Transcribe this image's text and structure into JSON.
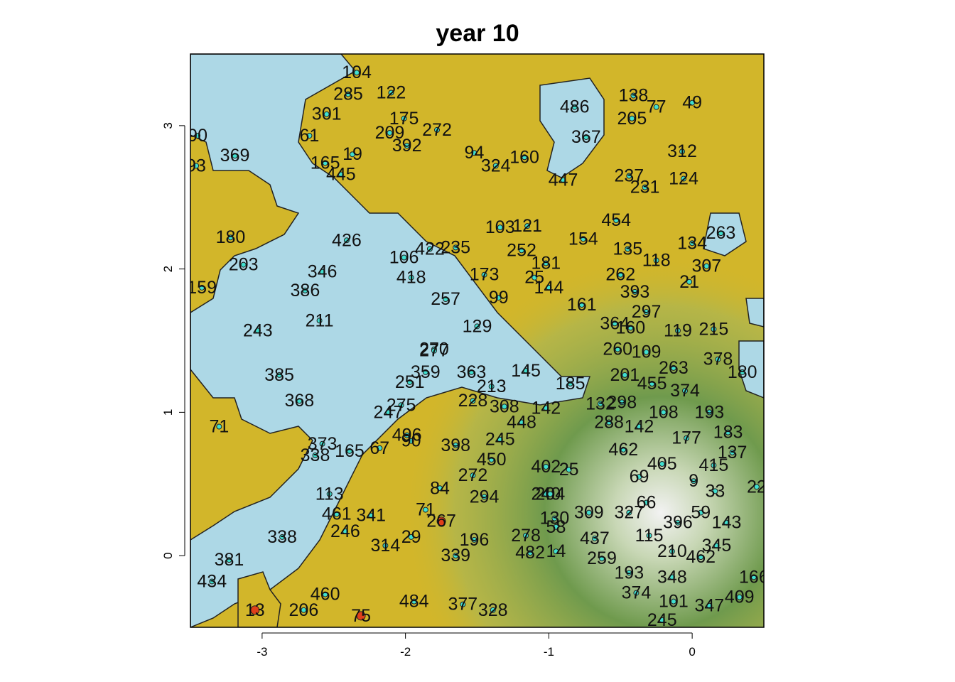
{
  "chart_data": {
    "type": "scatter",
    "title": "year 10",
    "xlabel": "",
    "ylabel": "",
    "xlim": [
      -3.5,
      0.5
    ],
    "ylim": [
      -0.5,
      3.5
    ],
    "x_ticks": [
      -3,
      -2,
      -1,
      0
    ],
    "y_ticks": [
      0,
      1,
      2,
      3
    ],
    "colors": {
      "water": "#add8e6",
      "land": "#d2b62a",
      "terrain_dark": "#6f9a4d",
      "terrain_light": "#c8d7b5",
      "peak": "#f2f2f2",
      "point": "#40e0d0",
      "point_highlight": "#e0401a"
    },
    "points": [
      {
        "id": "369",
        "x": -3.19,
        "y": 2.79
      },
      {
        "id": "93",
        "x": -3.46,
        "y": 2.72
      },
      {
        "id": "90",
        "x": -3.45,
        "y": 2.93
      },
      {
        "id": "61",
        "x": -2.67,
        "y": 2.93
      },
      {
        "id": "165",
        "x": -2.56,
        "y": 2.74
      },
      {
        "id": "445",
        "x": -2.45,
        "y": 2.66
      },
      {
        "id": "19",
        "x": -2.37,
        "y": 2.8
      },
      {
        "id": "301",
        "x": -2.55,
        "y": 3.08
      },
      {
        "id": "285",
        "x": -2.4,
        "y": 3.22
      },
      {
        "id": "104",
        "x": -2.34,
        "y": 3.37
      },
      {
        "id": "122",
        "x": -2.1,
        "y": 3.23
      },
      {
        "id": "175",
        "x": -2.01,
        "y": 3.05
      },
      {
        "id": "209",
        "x": -2.11,
        "y": 2.95
      },
      {
        "id": "272",
        "x": -1.78,
        "y": 2.97
      },
      {
        "id": "392",
        "x": -1.99,
        "y": 2.86
      },
      {
        "id": "94",
        "x": -1.52,
        "y": 2.81
      },
      {
        "id": "324",
        "x": -1.37,
        "y": 2.72
      },
      {
        "id": "160",
        "x": -1.17,
        "y": 2.78
      },
      {
        "id": "486",
        "x": -0.82,
        "y": 3.13
      },
      {
        "id": "367",
        "x": -0.74,
        "y": 2.92
      },
      {
        "id": "138",
        "x": -0.41,
        "y": 3.21
      },
      {
        "id": "205",
        "x": -0.42,
        "y": 3.05
      },
      {
        "id": "77",
        "x": -0.25,
        "y": 3.13
      },
      {
        "id": "49",
        "x": 0.0,
        "y": 3.16
      },
      {
        "id": "312",
        "x": -0.07,
        "y": 2.82
      },
      {
        "id": "124",
        "x": -0.06,
        "y": 2.63
      },
      {
        "id": "237",
        "x": -0.44,
        "y": 2.65
      },
      {
        "id": "231",
        "x": -0.33,
        "y": 2.57
      },
      {
        "id": "447",
        "x": -0.9,
        "y": 2.62
      },
      {
        "id": "154",
        "x": -0.76,
        "y": 2.21
      },
      {
        "id": "454",
        "x": -0.53,
        "y": 2.34
      },
      {
        "id": "135",
        "x": -0.45,
        "y": 2.14
      },
      {
        "id": "118",
        "x": -0.25,
        "y": 2.06
      },
      {
        "id": "307",
        "x": 0.1,
        "y": 2.02
      },
      {
        "id": "134",
        "x": 0.0,
        "y": 2.18
      },
      {
        "id": "263",
        "x": 0.2,
        "y": 2.25
      },
      {
        "id": "21",
        "x": -0.02,
        "y": 1.91
      },
      {
        "id": "393",
        "x": -0.4,
        "y": 1.84
      },
      {
        "id": "262",
        "x": -0.5,
        "y": 1.96
      },
      {
        "id": "144",
        "x": -1.0,
        "y": 1.87
      },
      {
        "id": "161",
        "x": -0.77,
        "y": 1.75
      },
      {
        "id": "364",
        "x": -0.54,
        "y": 1.62
      },
      {
        "id": "160b",
        "label": "160",
        "x": -0.43,
        "y": 1.59
      },
      {
        "id": "119",
        "x": -0.1,
        "y": 1.57
      },
      {
        "id": "215",
        "x": 0.15,
        "y": 1.58
      },
      {
        "id": "297",
        "x": -0.32,
        "y": 1.7
      },
      {
        "id": "260",
        "x": -0.52,
        "y": 1.44
      },
      {
        "id": "109",
        "x": -0.32,
        "y": 1.42
      },
      {
        "id": "263b",
        "label": "263",
        "x": -0.13,
        "y": 1.31
      },
      {
        "id": "378",
        "x": 0.18,
        "y": 1.37
      },
      {
        "id": "180",
        "x": 0.35,
        "y": 1.28
      },
      {
        "id": "201",
        "x": -0.47,
        "y": 1.26
      },
      {
        "id": "455",
        "x": -0.28,
        "y": 1.2
      },
      {
        "id": "374",
        "x": -0.05,
        "y": 1.15
      },
      {
        "id": "298",
        "x": -0.49,
        "y": 1.07
      },
      {
        "id": "185",
        "x": -0.85,
        "y": 1.2
      },
      {
        "id": "132",
        "x": -0.64,
        "y": 1.06
      },
      {
        "id": "108",
        "x": -0.2,
        "y": 1.0
      },
      {
        "id": "193",
        "x": 0.12,
        "y": 1.0
      },
      {
        "id": "183",
        "x": 0.25,
        "y": 0.86
      },
      {
        "id": "177",
        "x": -0.04,
        "y": 0.82
      },
      {
        "id": "142",
        "x": -0.37,
        "y": 0.9
      },
      {
        "id": "288",
        "x": -0.58,
        "y": 0.93
      },
      {
        "id": "462",
        "x": -0.48,
        "y": 0.74
      },
      {
        "id": "405",
        "x": -0.21,
        "y": 0.64
      },
      {
        "id": "415",
        "x": 0.15,
        "y": 0.63
      },
      {
        "id": "137",
        "x": 0.28,
        "y": 0.72
      },
      {
        "id": "69",
        "x": -0.37,
        "y": 0.55
      },
      {
        "id": "9",
        "x": 0.01,
        "y": 0.52
      },
      {
        "id": "33",
        "x": 0.16,
        "y": 0.45
      },
      {
        "id": "22",
        "x": 0.45,
        "y": 0.48
      },
      {
        "id": "66",
        "x": -0.32,
        "y": 0.37
      },
      {
        "id": "59",
        "x": 0.06,
        "y": 0.3
      },
      {
        "id": "396",
        "x": -0.1,
        "y": 0.23
      },
      {
        "id": "143",
        "x": 0.24,
        "y": 0.23
      },
      {
        "id": "327",
        "x": -0.44,
        "y": 0.3
      },
      {
        "id": "115",
        "x": -0.3,
        "y": 0.14
      },
      {
        "id": "345",
        "x": 0.17,
        "y": 0.07
      },
      {
        "id": "210",
        "x": -0.14,
        "y": 0.03
      },
      {
        "id": "462b",
        "label": "462",
        "x": 0.06,
        "y": -0.01
      },
      {
        "id": "348",
        "x": -0.14,
        "y": -0.15
      },
      {
        "id": "166",
        "x": 0.43,
        "y": -0.15
      },
      {
        "id": "409",
        "x": 0.33,
        "y": -0.29
      },
      {
        "id": "101",
        "x": -0.13,
        "y": -0.32
      },
      {
        "id": "347",
        "x": 0.12,
        "y": -0.35
      },
      {
        "id": "245",
        "x": -0.21,
        "y": -0.45
      },
      {
        "id": "374b",
        "label": "374",
        "x": -0.39,
        "y": -0.26
      },
      {
        "id": "193b",
        "label": "193",
        "x": -0.44,
        "y": -0.12
      },
      {
        "id": "259",
        "x": -0.63,
        "y": -0.02
      },
      {
        "id": "437",
        "x": -0.68,
        "y": 0.12
      },
      {
        "id": "240",
        "x": -1.02,
        "y": 0.43
      },
      {
        "id": "204",
        "x": -0.99,
        "y": 0.43
      },
      {
        "id": "402",
        "x": -1.02,
        "y": 0.62
      },
      {
        "id": "25",
        "x": -0.86,
        "y": 0.6
      },
      {
        "id": "309",
        "x": -0.72,
        "y": 0.3
      },
      {
        "id": "130",
        "x": -0.96,
        "y": 0.26
      },
      {
        "id": "58",
        "x": -0.95,
        "y": 0.2
      },
      {
        "id": "211",
        "x": -2.6,
        "y": 1.64
      },
      {
        "id": "368",
        "x": -2.74,
        "y": 1.08
      },
      {
        "id": "338",
        "x": -2.86,
        "y": 0.13
      },
      {
        "id": "381",
        "x": -3.23,
        "y": -0.03
      },
      {
        "id": "434",
        "x": -3.35,
        "y": -0.18
      },
      {
        "id": "206",
        "x": -2.71,
        "y": -0.38
      },
      {
        "id": "460",
        "x": -2.56,
        "y": -0.27
      },
      {
        "id": "246",
        "x": -2.42,
        "y": 0.17
      },
      {
        "id": "461",
        "x": -2.48,
        "y": 0.29
      },
      {
        "id": "341",
        "x": -2.24,
        "y": 0.28
      },
      {
        "id": "113",
        "x": -2.53,
        "y": 0.43
      },
      {
        "id": "338b",
        "label": "338",
        "x": -2.63,
        "y": 0.7
      },
      {
        "id": "373",
        "x": -2.58,
        "y": 0.78
      },
      {
        "id": "165b",
        "label": "165",
        "x": -2.39,
        "y": 0.73
      },
      {
        "id": "67",
        "x": -2.18,
        "y": 0.75
      },
      {
        "id": "496",
        "x": -1.99,
        "y": 0.84
      },
      {
        "id": "90b",
        "label": "90",
        "x": -1.96,
        "y": 0.8
      },
      {
        "id": "398",
        "x": -1.65,
        "y": 0.77
      },
      {
        "id": "450",
        "x": -1.4,
        "y": 0.67
      },
      {
        "id": "272b",
        "label": "272",
        "x": -1.53,
        "y": 0.56
      },
      {
        "id": "84",
        "x": -1.76,
        "y": 0.47
      },
      {
        "id": "294",
        "x": -1.45,
        "y": 0.41
      },
      {
        "id": "71",
        "x": -1.86,
        "y": 0.32
      },
      {
        "id": "267",
        "x": -1.75,
        "y": 0.24
      },
      {
        "id": "29",
        "x": -1.96,
        "y": 0.13
      },
      {
        "id": "314",
        "x": -2.14,
        "y": 0.07
      },
      {
        "id": "196",
        "x": -1.52,
        "y": 0.11
      },
      {
        "id": "278",
        "x": -1.16,
        "y": 0.14
      },
      {
        "id": "482",
        "x": -1.13,
        "y": 0.02
      },
      {
        "id": "14",
        "x": -0.95,
        "y": 0.03
      },
      {
        "id": "339",
        "x": -1.65,
        "y": 0.0
      },
      {
        "id": "377",
        "x": -1.6,
        "y": -0.34
      },
      {
        "id": "328",
        "x": -1.39,
        "y": -0.38
      },
      {
        "id": "484",
        "x": -1.94,
        "y": -0.32
      },
      {
        "id": "75",
        "x": -2.31,
        "y": -0.42
      },
      {
        "id": "13",
        "x": -3.05,
        "y": -0.38
      },
      {
        "id": "245b",
        "label": "245",
        "x": -1.34,
        "y": 0.81
      },
      {
        "id": "448",
        "x": -1.19,
        "y": 0.93
      },
      {
        "id": "308",
        "x": -1.31,
        "y": 1.04
      },
      {
        "id": "142b",
        "label": "142",
        "x": -1.02,
        "y": 1.03
      },
      {
        "id": "228",
        "x": -1.53,
        "y": 1.08
      },
      {
        "id": "275",
        "x": -2.03,
        "y": 1.05
      },
      {
        "id": "247",
        "x": -2.12,
        "y": 1.0
      },
      {
        "id": "213",
        "x": -1.4,
        "y": 1.18
      },
      {
        "id": "251",
        "x": -1.97,
        "y": 1.21
      },
      {
        "id": "359",
        "x": -1.86,
        "y": 1.28
      },
      {
        "id": "363",
        "x": -1.54,
        "y": 1.28
      },
      {
        "id": "145",
        "x": -1.16,
        "y": 1.29
      },
      {
        "id": "270",
        "x": -1.8,
        "y": 1.44
      },
      {
        "id": "277",
        "x": -1.8,
        "y": 1.43
      },
      {
        "id": "129",
        "x": -1.5,
        "y": 1.6
      },
      {
        "id": "257",
        "x": -1.72,
        "y": 1.79
      },
      {
        "id": "99",
        "x": -1.35,
        "y": 1.8
      },
      {
        "id": "418",
        "x": -1.96,
        "y": 1.94
      },
      {
        "id": "25b",
        "label": "25",
        "x": -1.1,
        "y": 1.94
      },
      {
        "id": "173",
        "x": -1.45,
        "y": 1.96
      },
      {
        "id": "106",
        "x": -2.01,
        "y": 2.08
      },
      {
        "id": "235",
        "x": -1.65,
        "y": 2.15
      },
      {
        "id": "252",
        "x": -1.19,
        "y": 2.13
      },
      {
        "id": "181",
        "x": -1.02,
        "y": 2.04
      },
      {
        "id": "422",
        "x": -1.83,
        "y": 2.14
      },
      {
        "id": "121",
        "x": -1.15,
        "y": 2.3
      },
      {
        "id": "103",
        "x": -1.34,
        "y": 2.29
      },
      {
        "id": "426",
        "x": -2.41,
        "y": 2.2
      },
      {
        "id": "346",
        "x": -2.58,
        "y": 1.98
      },
      {
        "id": "386",
        "x": -2.7,
        "y": 1.85
      },
      {
        "id": "243",
        "x": -3.03,
        "y": 1.57
      },
      {
        "id": "203",
        "x": -3.13,
        "y": 2.03
      },
      {
        "id": "159",
        "x": -3.42,
        "y": 1.87
      },
      {
        "id": "385",
        "x": -2.88,
        "y": 1.26
      },
      {
        "id": "71b",
        "label": "71",
        "x": -3.3,
        "y": 0.9
      },
      {
        "id": "180b",
        "label": "180",
        "x": -3.22,
        "y": 2.22
      }
    ],
    "highlighted_points": [
      "267",
      "75",
      "13"
    ]
  }
}
